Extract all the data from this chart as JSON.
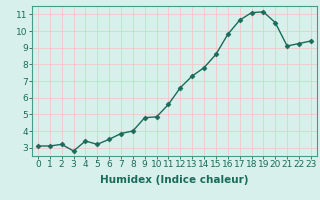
{
  "x": [
    0,
    1,
    2,
    3,
    4,
    5,
    6,
    7,
    8,
    9,
    10,
    11,
    12,
    13,
    14,
    15,
    16,
    17,
    18,
    19,
    20,
    21,
    22,
    23
  ],
  "y": [
    3.1,
    3.1,
    3.2,
    2.8,
    3.4,
    3.2,
    3.5,
    3.85,
    4.0,
    4.8,
    4.85,
    5.6,
    6.6,
    7.3,
    7.8,
    8.6,
    9.8,
    10.65,
    11.1,
    11.15,
    10.5,
    9.1,
    9.25,
    9.4
  ],
  "line_color": "#1a6b5a",
  "marker": "D",
  "marker_size": 2.5,
  "bg_color": "#d8f0ec",
  "grid_color": "#f0c8c8",
  "xlabel": "Humidex (Indice chaleur)",
  "xlabel_fontsize": 7.5,
  "xlim": [
    -0.5,
    23.5
  ],
  "ylim": [
    2.5,
    11.5
  ],
  "yticks": [
    3,
    4,
    5,
    6,
    7,
    8,
    9,
    10,
    11
  ],
  "xticks": [
    0,
    1,
    2,
    3,
    4,
    5,
    6,
    7,
    8,
    9,
    10,
    11,
    12,
    13,
    14,
    15,
    16,
    17,
    18,
    19,
    20,
    21,
    22,
    23
  ],
  "tick_fontsize": 6.5,
  "axis_color": "#1a6b5a",
  "spine_color": "#4a9a8a"
}
